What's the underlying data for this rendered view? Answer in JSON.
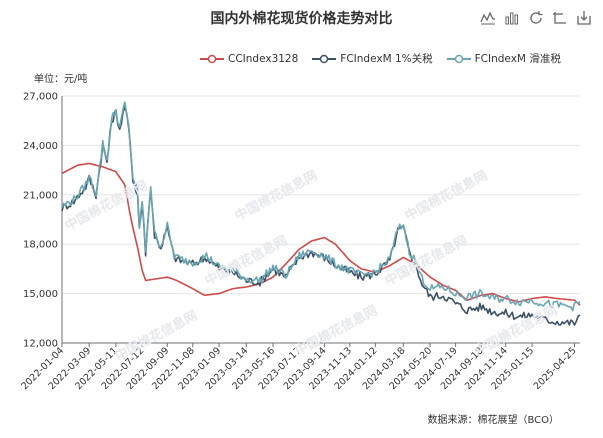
{
  "title": "国内外棉花现货价格走势对比",
  "unit_label": "单位：元/吨",
  "source": "数据来源：棉花展望（BCO）",
  "watermark": "中国棉花信息网",
  "toolbox": [
    "line-chart-icon",
    "bar-chart-icon",
    "restore-icon",
    "data-view-icon",
    "download-icon"
  ],
  "colors": {
    "cc": "#d14a4a",
    "fc1": "#3d5164",
    "fcs": "#6aa6b2"
  },
  "chart_data": {
    "type": "line",
    "title": "国内外棉花现货价格走势对比",
    "ylabel": "单位：元/吨",
    "xlabel": "",
    "ylim": [
      12000,
      27000
    ],
    "yticks": [
      12000,
      15000,
      18000,
      21000,
      24000,
      27000
    ],
    "ytick_labels": [
      "12,000",
      "15,000",
      "18,000",
      "21,000",
      "24,000",
      "27,000"
    ],
    "xlim": [
      "2022-01-04",
      "2025-05-08"
    ],
    "xticks": [
      "2022-01-04",
      "2022-03-09",
      "2022-05-11",
      "2022-07-12",
      "2022-09-09",
      "2022-11-08",
      "2023-01-09",
      "2023-03-14",
      "2023-05-16",
      "2023-07-17",
      "2023-09-14",
      "2023-11-13",
      "2024-01-12",
      "2024-03-18",
      "2024-05-20",
      "2024-07-19",
      "2024-09-18",
      "2024-11-14",
      "2025-01-15",
      "2025-04-25"
    ],
    "legend_position": "top",
    "grid": "horizontal",
    "series": [
      {
        "name": "CCIndex3128",
        "color": "#d14a4a",
        "points": [
          [
            "2022-01-04",
            22300
          ],
          [
            "2022-02-10",
            22800
          ],
          [
            "2022-03-09",
            22900
          ],
          [
            "2022-04-10",
            22700
          ],
          [
            "2022-05-11",
            22400
          ],
          [
            "2022-06-01",
            21600
          ],
          [
            "2022-06-12",
            20000
          ],
          [
            "2022-06-20",
            19000
          ],
          [
            "2022-07-01",
            17800
          ],
          [
            "2022-07-12",
            16400
          ],
          [
            "2022-07-20",
            15800
          ],
          [
            "2022-08-15",
            15900
          ],
          [
            "2022-09-09",
            16000
          ],
          [
            "2022-10-01",
            15800
          ],
          [
            "2022-11-08",
            15300
          ],
          [
            "2022-12-05",
            14900
          ],
          [
            "2023-01-09",
            15000
          ],
          [
            "2023-02-10",
            15300
          ],
          [
            "2023-03-14",
            15400
          ],
          [
            "2023-04-15",
            15600
          ],
          [
            "2023-05-16",
            16000
          ],
          [
            "2023-06-15",
            16800
          ],
          [
            "2023-07-17",
            17700
          ],
          [
            "2023-08-15",
            18200
          ],
          [
            "2023-09-14",
            18400
          ],
          [
            "2023-10-10",
            18000
          ],
          [
            "2023-11-13",
            17000
          ],
          [
            "2023-12-10",
            16500
          ],
          [
            "2024-01-12",
            16300
          ],
          [
            "2024-02-15",
            16700
          ],
          [
            "2024-03-18",
            17200
          ],
          [
            "2024-04-15",
            16800
          ],
          [
            "2024-05-20",
            16000
          ],
          [
            "2024-06-20",
            15500
          ],
          [
            "2024-07-19",
            15200
          ],
          [
            "2024-08-15",
            14600
          ],
          [
            "2024-09-18",
            14900
          ],
          [
            "2024-10-15",
            15000
          ],
          [
            "2024-11-14",
            14700
          ],
          [
            "2024-12-15",
            14500
          ],
          [
            "2025-01-15",
            14700
          ],
          [
            "2025-02-15",
            14800
          ],
          [
            "2025-03-15",
            14700
          ],
          [
            "2025-04-25",
            14600
          ],
          [
            "2025-05-08",
            14300
          ]
        ]
      },
      {
        "name": "FCIndexM 1%关税",
        "color": "#3d5164",
        "points": [
          [
            "2022-01-04",
            20200
          ],
          [
            "2022-02-01",
            20600
          ],
          [
            "2022-03-01",
            21500
          ],
          [
            "2022-03-09",
            22000
          ],
          [
            "2022-03-25",
            21000
          ],
          [
            "2022-04-10",
            24000
          ],
          [
            "2022-04-20",
            23000
          ],
          [
            "2022-05-01",
            25500
          ],
          [
            "2022-05-11",
            26000
          ],
          [
            "2022-05-20",
            25000
          ],
          [
            "2022-06-01",
            26400
          ],
          [
            "2022-06-10",
            25000
          ],
          [
            "2022-06-20",
            22000
          ],
          [
            "2022-07-01",
            21000
          ],
          [
            "2022-07-05",
            19000
          ],
          [
            "2022-07-12",
            20500
          ],
          [
            "2022-07-20",
            17500
          ],
          [
            "2022-08-01",
            21500
          ],
          [
            "2022-08-10",
            18500
          ],
          [
            "2022-08-25",
            17800
          ],
          [
            "2022-09-09",
            19000
          ],
          [
            "2022-09-25",
            17200
          ],
          [
            "2022-10-10",
            17000
          ],
          [
            "2022-11-08",
            16800
          ],
          [
            "2022-12-10",
            17200
          ],
          [
            "2023-01-09",
            16500
          ],
          [
            "2023-02-10",
            16300
          ],
          [
            "2023-03-14",
            15800
          ],
          [
            "2023-04-15",
            15700
          ],
          [
            "2023-05-16",
            16500
          ],
          [
            "2023-06-15",
            16000
          ],
          [
            "2023-07-17",
            17200
          ],
          [
            "2023-08-15",
            17500
          ],
          [
            "2023-09-14",
            17200
          ],
          [
            "2023-10-10",
            16700
          ],
          [
            "2023-11-13",
            16300
          ],
          [
            "2023-12-10",
            16000
          ],
          [
            "2024-01-12",
            16200
          ],
          [
            "2024-02-15",
            17000
          ],
          [
            "2024-03-05",
            18800
          ],
          [
            "2024-03-18",
            19000
          ],
          [
            "2024-04-01",
            17500
          ],
          [
            "2024-04-15",
            16800
          ],
          [
            "2024-05-01",
            15600
          ],
          [
            "2024-05-20",
            14800
          ],
          [
            "2024-06-20",
            14900
          ],
          [
            "2024-07-19",
            14400
          ],
          [
            "2024-08-15",
            14000
          ],
          [
            "2024-09-18",
            14200
          ],
          [
            "2024-10-15",
            13900
          ],
          [
            "2024-11-14",
            13800
          ],
          [
            "2024-12-15",
            13600
          ],
          [
            "2025-01-15",
            13700
          ],
          [
            "2025-02-15",
            13400
          ],
          [
            "2025-03-15",
            13300
          ],
          [
            "2025-04-25",
            13200
          ],
          [
            "2025-05-08",
            13700
          ]
        ]
      },
      {
        "name": "FCIndexM 滑准税",
        "color": "#6aa6b2",
        "points": [
          [
            "2022-01-04",
            20300
          ],
          [
            "2022-02-01",
            20700
          ],
          [
            "2022-03-01",
            21600
          ],
          [
            "2022-03-09",
            22100
          ],
          [
            "2022-03-25",
            21100
          ],
          [
            "2022-04-10",
            24100
          ],
          [
            "2022-04-20",
            23100
          ],
          [
            "2022-05-01",
            25600
          ],
          [
            "2022-05-11",
            26100
          ],
          [
            "2022-05-20",
            25100
          ],
          [
            "2022-06-01",
            26500
          ],
          [
            "2022-06-10",
            25100
          ],
          [
            "2022-06-20",
            22100
          ],
          [
            "2022-07-01",
            21100
          ],
          [
            "2022-07-05",
            19100
          ],
          [
            "2022-07-12",
            20600
          ],
          [
            "2022-07-20",
            17600
          ],
          [
            "2022-08-01",
            21600
          ],
          [
            "2022-08-10",
            18600
          ],
          [
            "2022-08-25",
            17900
          ],
          [
            "2022-09-09",
            19100
          ],
          [
            "2022-09-25",
            17300
          ],
          [
            "2022-10-10",
            17100
          ],
          [
            "2022-11-08",
            16900
          ],
          [
            "2022-12-10",
            17300
          ],
          [
            "2023-01-09",
            16600
          ],
          [
            "2023-02-10",
            16400
          ],
          [
            "2023-03-14",
            15900
          ],
          [
            "2023-04-15",
            15800
          ],
          [
            "2023-05-16",
            16600
          ],
          [
            "2023-06-15",
            16100
          ],
          [
            "2023-07-17",
            17300
          ],
          [
            "2023-08-15",
            17600
          ],
          [
            "2023-09-14",
            17300
          ],
          [
            "2023-10-10",
            16800
          ],
          [
            "2023-11-13",
            16400
          ],
          [
            "2023-12-10",
            16100
          ],
          [
            "2024-01-12",
            16300
          ],
          [
            "2024-02-15",
            17100
          ],
          [
            "2024-03-05",
            18900
          ],
          [
            "2024-03-18",
            19200
          ],
          [
            "2024-04-01",
            17600
          ],
          [
            "2024-04-15",
            17000
          ],
          [
            "2024-05-01",
            15900
          ],
          [
            "2024-05-20",
            15300
          ],
          [
            "2024-06-20",
            15400
          ],
          [
            "2024-07-19",
            15000
          ],
          [
            "2024-08-15",
            14800
          ],
          [
            "2024-09-18",
            15000
          ],
          [
            "2024-10-15",
            14700
          ],
          [
            "2024-11-14",
            14700
          ],
          [
            "2024-12-15",
            14500
          ],
          [
            "2025-01-15",
            14600
          ],
          [
            "2025-02-15",
            14400
          ],
          [
            "2025-03-15",
            14300
          ],
          [
            "2025-04-25",
            14200
          ],
          [
            "2025-05-08",
            14500
          ]
        ]
      }
    ]
  }
}
